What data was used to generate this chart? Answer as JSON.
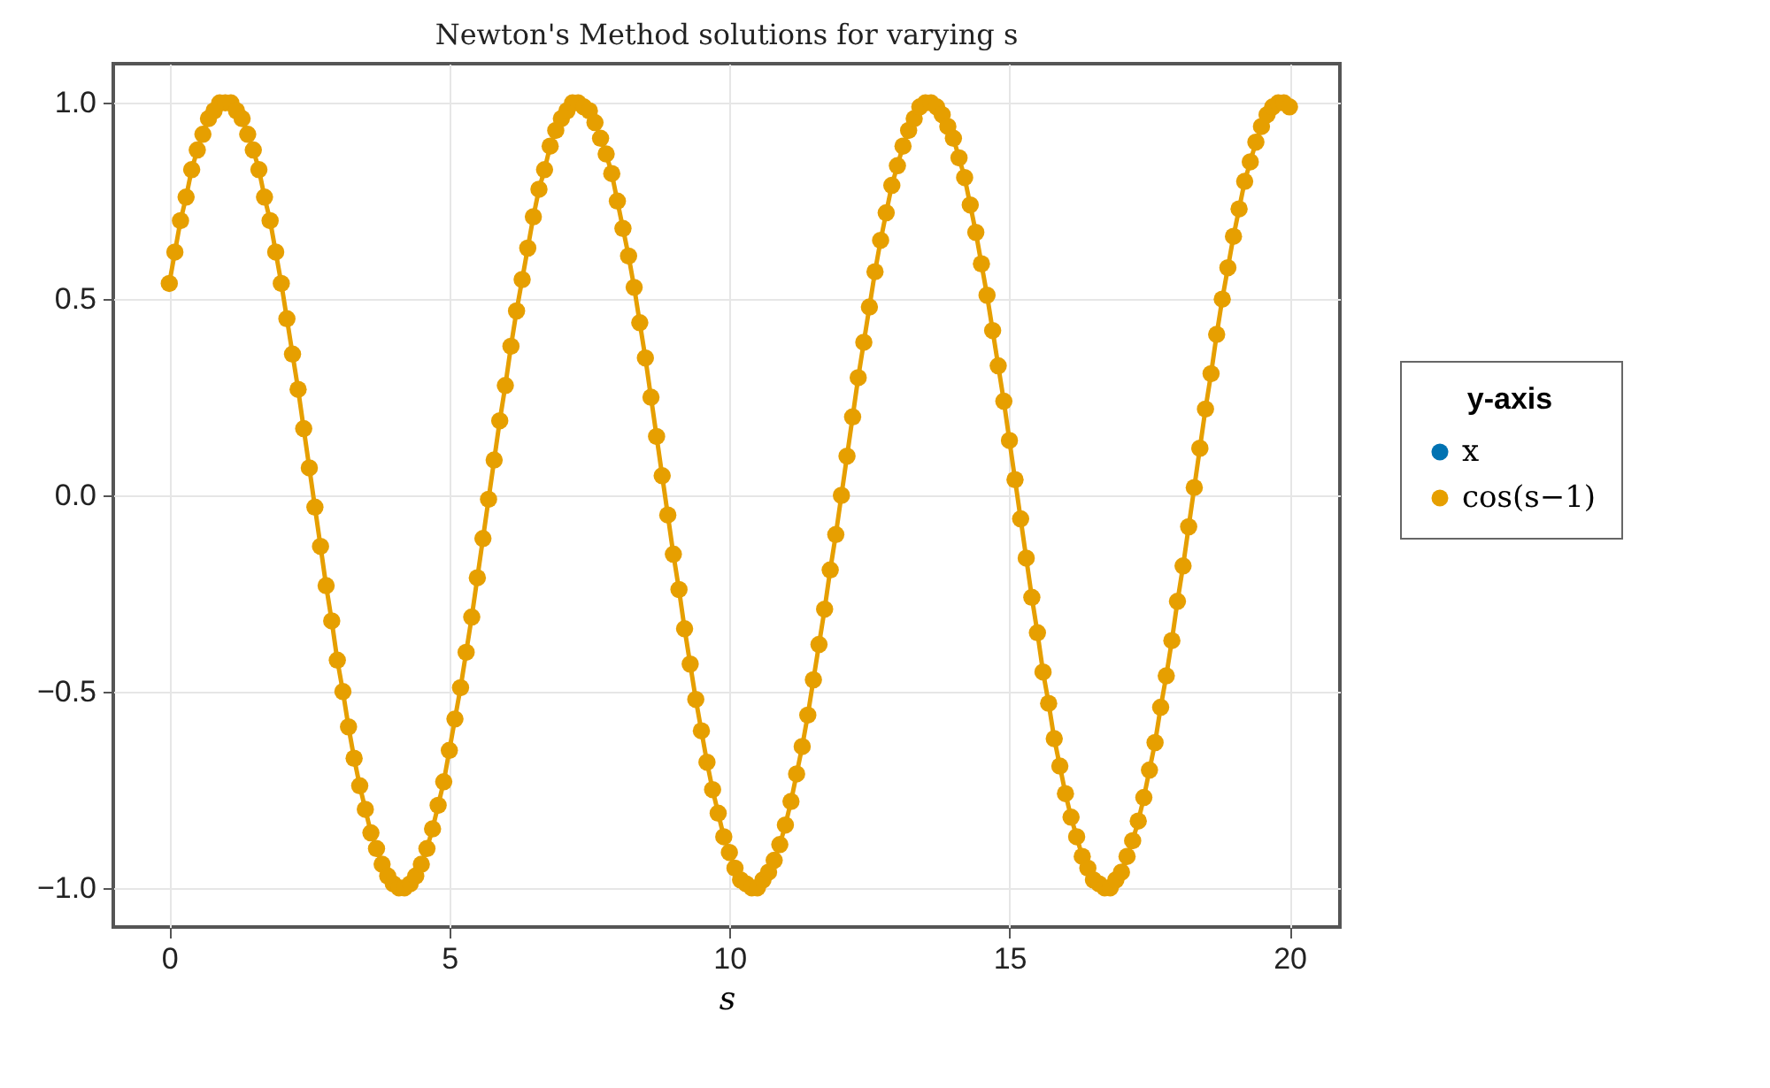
{
  "chart_data": {
    "type": "line",
    "title": "Newton's Method solutions for varying s",
    "xlabel": "s",
    "legend_title": "y-axis",
    "legend": "right",
    "grid": true,
    "marker": "circle",
    "line_style": "solid",
    "xlim": [
      -1,
      20.9
    ],
    "ylim": [
      -1.1,
      1.1
    ],
    "xticks": [
      0,
      5,
      10,
      15,
      20
    ],
    "yticks": [
      {
        "value": -1,
        "label": "−1.0"
      },
      {
        "value": -0.5,
        "label": "−0.5"
      },
      {
        "value": 0,
        "label": "0.0"
      },
      {
        "value": 0.5,
        "label": "0.5"
      },
      {
        "value": 1,
        "label": "1.0"
      }
    ],
    "x": [
      0,
      0.1,
      0.2,
      0.3,
      0.4,
      0.5,
      0.6,
      0.7,
      0.8,
      0.9,
      1,
      1.1,
      1.2,
      1.3,
      1.4,
      1.5,
      1.6,
      1.7,
      1.8,
      1.9,
      2,
      2.1,
      2.2,
      2.3,
      2.4,
      2.5,
      2.6,
      2.7,
      2.8,
      2.9,
      3,
      3.1,
      3.2,
      3.3,
      3.4,
      3.5,
      3.6,
      3.7,
      3.8,
      3.9,
      4,
      4.1,
      4.2,
      4.3,
      4.4,
      4.5,
      4.6,
      4.7,
      4.8,
      4.9,
      5,
      5.1,
      5.2,
      5.3,
      5.4,
      5.5,
      5.6,
      5.7,
      5.8,
      5.9,
      6,
      6.1,
      6.2,
      6.3,
      6.4,
      6.5,
      6.6,
      6.7,
      6.8,
      6.9,
      7,
      7.1,
      7.2,
      7.3,
      7.4,
      7.5,
      7.6,
      7.7,
      7.8,
      7.9,
      8,
      8.1,
      8.2,
      8.3,
      8.4,
      8.5,
      8.6,
      8.7,
      8.8,
      8.9,
      9,
      9.1,
      9.2,
      9.3,
      9.4,
      9.5,
      9.6,
      9.7,
      9.8,
      9.9,
      10,
      10.1,
      10.2,
      10.3,
      10.4,
      10.5,
      10.6,
      10.7,
      10.8,
      10.9,
      11,
      11.1,
      11.2,
      11.3,
      11.4,
      11.5,
      11.6,
      11.7,
      11.8,
      11.9,
      12,
      12.1,
      12.2,
      12.3,
      12.4,
      12.5,
      12.6,
      12.7,
      12.8,
      12.9,
      13,
      13.1,
      13.2,
      13.3,
      13.4,
      13.5,
      13.6,
      13.7,
      13.8,
      13.9,
      14,
      14.1,
      14.2,
      14.3,
      14.4,
      14.5,
      14.6,
      14.7,
      14.8,
      14.9,
      15,
      15.1,
      15.2,
      15.3,
      15.4,
      15.5,
      15.6,
      15.7,
      15.8,
      15.9,
      16,
      16.1,
      16.2,
      16.3,
      16.4,
      16.5,
      16.6,
      16.7,
      16.8,
      16.9,
      17,
      17.1,
      17.2,
      17.3,
      17.4,
      17.5,
      17.6,
      17.7,
      17.8,
      17.9,
      18,
      18.1,
      18.2,
      18.3,
      18.4,
      18.5,
      18.6,
      18.7,
      18.8,
      18.9,
      19,
      19.1,
      19.2,
      19.3,
      19.4,
      19.5,
      19.6,
      19.7,
      19.8,
      19.9,
      20
    ],
    "series": [
      {
        "name": "x",
        "color": "#0072b2",
        "values": [
          null,
          null,
          null,
          null,
          null,
          null,
          null,
          null,
          null,
          null,
          null,
          null,
          null,
          null,
          null,
          null,
          null,
          null,
          null,
          null,
          null,
          null,
          null,
          null,
          null,
          null,
          null,
          null,
          null,
          null,
          null,
          null,
          null,
          null,
          null,
          null,
          null,
          null,
          null,
          null,
          null,
          null,
          null,
          null,
          null,
          null,
          null,
          null,
          null,
          null,
          null,
          null,
          null,
          null,
          null,
          null,
          null,
          null,
          null,
          null,
          null,
          null,
          null,
          null,
          null,
          null,
          null,
          null,
          null,
          null,
          null,
          null,
          null,
          null,
          null,
          null,
          null,
          null,
          null,
          null,
          null,
          null,
          null,
          null,
          null,
          null,
          null,
          null,
          null,
          null,
          null,
          null,
          null,
          null,
          null,
          null,
          null,
          null,
          null,
          null,
          null,
          null,
          null,
          null,
          null,
          null,
          null,
          null,
          null,
          null,
          null,
          null,
          null,
          null,
          null,
          null,
          null,
          null,
          null,
          null,
          null,
          null,
          null,
          null,
          null,
          null,
          null,
          null,
          null,
          null,
          null,
          null,
          null,
          null,
          null,
          null,
          null,
          null,
          null,
          null,
          null,
          null,
          null,
          null,
          null,
          null,
          null,
          null,
          null,
          null,
          null,
          null,
          null,
          null,
          null,
          null,
          null,
          null,
          null,
          null,
          null,
          null,
          null,
          null,
          null,
          null,
          null,
          null,
          null,
          null,
          null,
          null,
          null,
          null,
          null,
          null,
          null,
          null,
          null,
          null,
          null,
          null,
          null,
          null,
          null,
          null,
          null,
          null,
          null,
          null,
          null,
          null,
          null,
          null,
          null,
          null,
          null,
          null,
          null,
          null,
          null
        ]
      },
      {
        "name": "cos(s−1)",
        "color": "#e69f00",
        "values": [
          0.54,
          0.62,
          0.7,
          0.76,
          0.83,
          0.88,
          0.92,
          0.96,
          0.98,
          1.0,
          1.0,
          1.0,
          0.98,
          0.96,
          0.92,
          0.88,
          0.83,
          0.76,
          0.7,
          0.62,
          0.54,
          0.45,
          0.36,
          0.27,
          0.17,
          0.07,
          -0.03,
          -0.13,
          -0.23,
          -0.32,
          -0.42,
          -0.5,
          -0.59,
          -0.67,
          -0.74,
          -0.8,
          -0.86,
          -0.9,
          -0.94,
          -0.97,
          -0.99,
          -1.0,
          -1.0,
          -0.99,
          -0.97,
          -0.94,
          -0.9,
          -0.85,
          -0.79,
          -0.73,
          -0.65,
          -0.57,
          -0.49,
          -0.4,
          -0.31,
          -0.21,
          -0.11,
          -0.01,
          0.09,
          0.19,
          0.28,
          0.38,
          0.47,
          0.55,
          0.63,
          0.71,
          0.78,
          0.83,
          0.89,
          0.93,
          0.96,
          0.98,
          1.0,
          1.0,
          0.99,
          0.98,
          0.95,
          0.91,
          0.87,
          0.82,
          0.75,
          0.68,
          0.61,
          0.53,
          0.44,
          0.35,
          0.25,
          0.15,
          0.05,
          -0.05,
          -0.15,
          -0.24,
          -0.34,
          -0.43,
          -0.52,
          -0.6,
          -0.68,
          -0.75,
          -0.81,
          -0.87,
          -0.91,
          -0.95,
          -0.98,
          -0.99,
          -1.0,
          -1.0,
          -0.98,
          -0.96,
          -0.93,
          -0.89,
          -0.84,
          -0.78,
          -0.71,
          -0.64,
          -0.56,
          -0.47,
          -0.38,
          -0.29,
          -0.19,
          -0.1,
          0.0,
          0.1,
          0.2,
          0.3,
          0.39,
          0.48,
          0.57,
          0.65,
          0.72,
          0.79,
          0.84,
          0.89,
          0.93,
          0.96,
          0.99,
          1.0,
          1.0,
          0.99,
          0.97,
          0.94,
          0.91,
          0.86,
          0.81,
          0.74,
          0.67,
          0.59,
          0.51,
          0.42,
          0.33,
          0.24,
          0.14,
          0.04,
          -0.06,
          -0.16,
          -0.26,
          -0.35,
          -0.45,
          -0.53,
          -0.62,
          -0.69,
          -0.76,
          -0.82,
          -0.87,
          -0.92,
          -0.95,
          -0.98,
          -0.99,
          -1.0,
          -1.0,
          -0.98,
          -0.96,
          -0.92,
          -0.88,
          -0.83,
          -0.77,
          -0.7,
          -0.63,
          -0.54,
          -0.46,
          -0.37,
          -0.27,
          -0.18,
          -0.08,
          0.02,
          0.12,
          0.22,
          0.31,
          0.41,
          0.5,
          0.58,
          0.66,
          0.73,
          0.8,
          0.85,
          0.9,
          0.94,
          0.97,
          0.99,
          1.0,
          1.0,
          0.99
        ]
      }
    ]
  }
}
